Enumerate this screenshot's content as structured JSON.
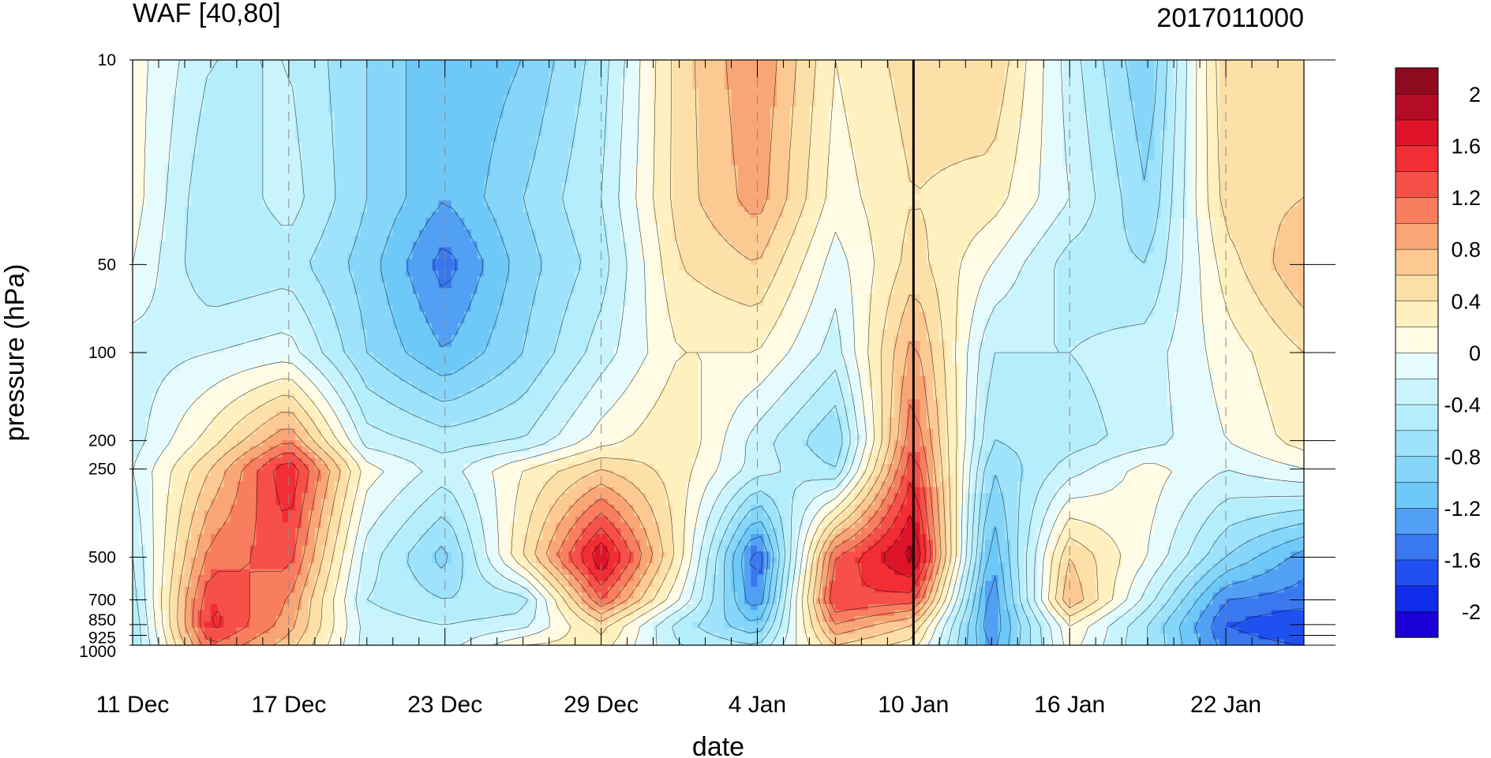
{
  "chart_data": {
    "type": "heatmap",
    "title": "WAF [40,80]",
    "subtitle": "2017011000",
    "xlabel": "date",
    "ylabel": "pressure (hPa)",
    "x_ticks": [
      "11 Dec",
      "17 Dec",
      "23 Dec",
      "29 Dec",
      "4 Jan",
      "10 Jan",
      "16 Jan",
      "22 Jan"
    ],
    "x_range_days": [
      0,
      45
    ],
    "x_tick_days": [
      0,
      6,
      12,
      18,
      24,
      30,
      36,
      42
    ],
    "y_scale": "log",
    "y_ticks": [
      "10",
      "50",
      "100",
      "200",
      "250",
      "500",
      "700",
      "850",
      "925",
      "1000"
    ],
    "y_tick_values": [
      10,
      50,
      100,
      200,
      250,
      500,
      700,
      850,
      925,
      1000
    ],
    "ylim": [
      1000,
      10
    ],
    "reference_line": "10 Jan",
    "colorbar": {
      "labels": [
        "2",
        "1.6",
        "1.2",
        "0.8",
        "0.4",
        "0",
        "-0.4",
        "-0.8",
        "-1.2",
        "-1.6",
        "-2"
      ],
      "label_values": [
        2,
        1.6,
        1.2,
        0.8,
        0.4,
        0,
        -0.4,
        -0.8,
        -1.2,
        -1.6,
        -2
      ],
      "range": [
        -2.2,
        2.2
      ],
      "colors": [
        "#1a00d6",
        "#0f2de8",
        "#2050f0",
        "#3a78f0",
        "#52a0f5",
        "#6ec8f8",
        "#86d6fa",
        "#9ee3fb",
        "#b4eefc",
        "#c9f4fd",
        "#e6fbfd",
        "#fffbe4",
        "#fff0bf",
        "#fde0a8",
        "#fcc993",
        "#f9a677",
        "#f87e5f",
        "#f65048",
        "#f22d34",
        "#dd1429",
        "#b40c24",
        "#8e0a1f"
      ]
    },
    "field": {
      "x": [
        0,
        3,
        6,
        9,
        12,
        15,
        18,
        21,
        24,
        27,
        30,
        33,
        36,
        39,
        42,
        45
      ],
      "y": [
        10,
        30,
        50,
        100,
        200,
        250,
        500,
        700,
        850,
        1000
      ],
      "values": [
        [
          0.1,
          -0.4,
          -0.4,
          -0.8,
          -1.2,
          -1.0,
          -0.5,
          0.5,
          1.0,
          0.2,
          0.5,
          0.6,
          -0.3,
          -1.0,
          0.6,
          0.6
        ],
        [
          0.1,
          -0.6,
          -0.3,
          -0.8,
          -1.2,
          -0.8,
          -0.4,
          0.5,
          0.9,
          0.1,
          0.4,
          0.3,
          -0.2,
          -0.8,
          0.5,
          0.6
        ],
        [
          0.0,
          -0.6,
          -0.5,
          -0.9,
          -1.5,
          -0.9,
          -0.5,
          0.4,
          0.6,
          -0.1,
          0.5,
          0.0,
          -0.5,
          -0.6,
          0.3,
          0.8
        ],
        [
          -0.3,
          -0.2,
          -0.1,
          -0.8,
          -1.2,
          -0.8,
          -0.3,
          0.2,
          0.2,
          -0.3,
          0.9,
          -0.4,
          -0.4,
          -0.3,
          0.1,
          0.4
        ],
        [
          -0.3,
          0.3,
          1.0,
          -0.3,
          -0.5,
          -0.4,
          0.1,
          0.4,
          -0.3,
          -0.8,
          1.2,
          -0.6,
          -0.5,
          -0.3,
          0.0,
          0.3
        ],
        [
          -0.2,
          0.6,
          1.6,
          0.1,
          -0.3,
          0.2,
          0.6,
          0.3,
          -0.3,
          -0.6,
          1.4,
          -0.8,
          -0.3,
          0.1,
          -0.2,
          0.0
        ],
        [
          -0.4,
          1.1,
          1.3,
          -0.3,
          -0.9,
          0.4,
          1.8,
          0.3,
          -1.6,
          1.2,
          1.9,
          -1.2,
          0.6,
          0.0,
          -0.8,
          -1.3
        ],
        [
          -0.5,
          1.4,
          1.0,
          -0.4,
          -0.6,
          -0.5,
          1.2,
          0.0,
          -1.4,
          1.4,
          1.3,
          -1.4,
          0.8,
          -0.3,
          -1.4,
          -1.5
        ],
        [
          -0.6,
          1.5,
          0.9,
          -0.3,
          -0.4,
          -0.3,
          0.5,
          -0.5,
          -1.0,
          1.0,
          0.6,
          -1.4,
          0.2,
          -0.6,
          -1.6,
          -1.8
        ],
        [
          -0.6,
          1.2,
          0.7,
          -0.3,
          -0.3,
          0.2,
          0.3,
          -0.4,
          -0.6,
          0.6,
          0.3,
          -1.3,
          0.1,
          -0.6,
          -1.5,
          -1.6
        ]
      ]
    }
  }
}
